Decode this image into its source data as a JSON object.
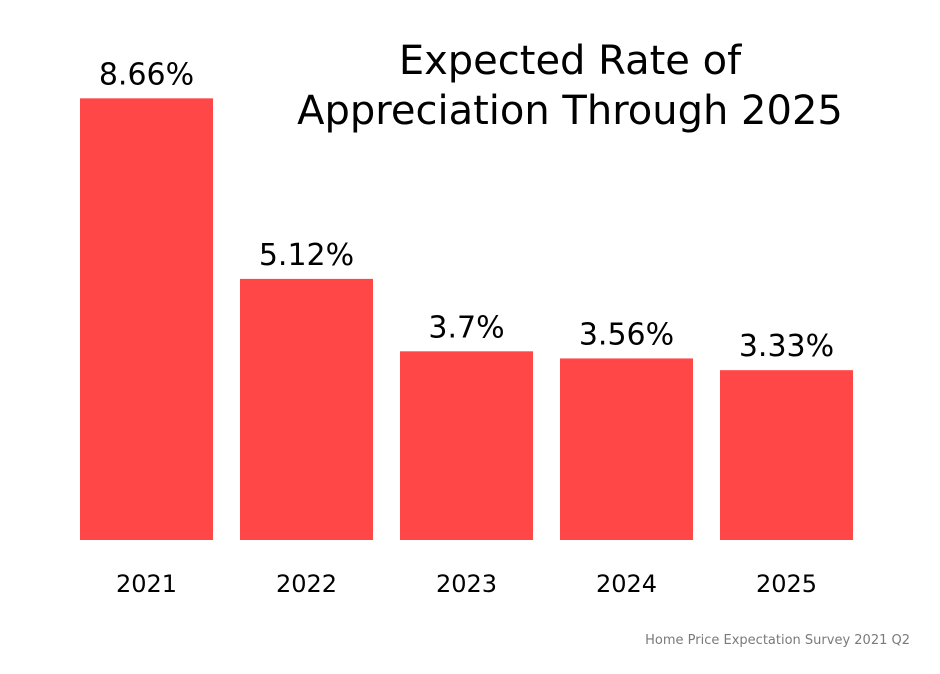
{
  "chart_data": {
    "type": "bar",
    "title": "Expected Rate of Appreciation Through 2025",
    "title_lines": [
      "Expected Rate of",
      "Appreciation Through 2025"
    ],
    "categories": [
      "2021",
      "2022",
      "2023",
      "2024",
      "2025"
    ],
    "values": [
      8.66,
      5.12,
      3.7,
      3.56,
      3.33
    ],
    "value_labels": [
      "8.66%",
      "5.12%",
      "3.7%",
      "3.56%",
      "3.33%"
    ],
    "xlabel": "",
    "ylabel": "",
    "unit": "%",
    "grid": false,
    "legend": "none",
    "bar_color": "#ff4747"
  },
  "source": "Home Price Expectation Survey 2021 Q2"
}
